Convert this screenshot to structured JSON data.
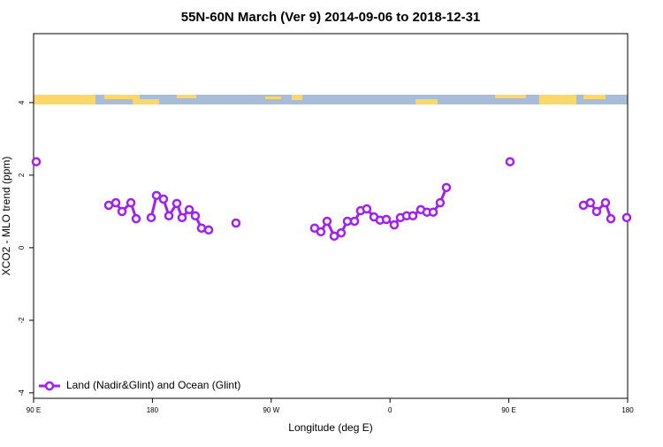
{
  "chart_data": {
    "type": "line",
    "title": "55N-60N March (Ver 9)   2014-09-06 to 2018-12-31",
    "x_label": "Longitude (deg E)",
    "y_label": "XCO2 - MLO trend (ppm)",
    "xlim": [
      90,
      540
    ],
    "ylim": [
      -4.15,
      5.9
    ],
    "xticks": [
      {
        "value": 90,
        "label": "90 E"
      },
      180,
      {
        "value": 270,
        "label": "90 W"
      },
      {
        "value": 360,
        "label": "0"
      },
      {
        "value": 450,
        "label": "90 E"
      },
      {
        "value": 540,
        "label": "180"
      }
    ],
    "yticks": [
      -4,
      -2,
      0,
      2,
      4
    ],
    "legend": "bottom-left",
    "series": [
      {
        "name": "Land (Nadir&Glint) and Ocean (Glint)",
        "color": "#a020f0",
        "x": [
          92.0,
          120,
          146.9,
          152.3,
          157.0,
          163.7,
          167.7,
          175,
          179.1,
          183.1,
          188.4,
          192.5,
          198.5,
          202.5,
          207.9,
          212.5,
          217.2,
          222.6,
          230,
          243.3,
          280,
          302.9,
          307.6,
          312.3,
          317.7,
          323.0,
          327.7,
          333.1,
          337.7,
          342.4,
          347.8,
          352.5,
          357.2,
          363.2,
          367.9,
          372.6,
          377.3,
          383.3,
          388.0,
          392.7,
          398.0,
          402.7,
          420,
          450.9,
          480,
          506.5,
          511.8,
          516.5,
          523.2,
          527.3,
          533,
          539.3
        ],
        "values": [
          2.37,
          null,
          1.17,
          1.24,
          1.0,
          1.24,
          0.8,
          null,
          0.83,
          1.44,
          1.34,
          0.88,
          1.22,
          0.83,
          1.05,
          0.88,
          0.54,
          0.49,
          null,
          0.68,
          null,
          0.54,
          0.44,
          0.73,
          0.32,
          0.41,
          0.73,
          0.73,
          1.02,
          1.07,
          0.85,
          0.76,
          0.78,
          0.63,
          0.83,
          0.88,
          0.88,
          1.05,
          0.98,
          0.98,
          1.24,
          1.66,
          null,
          2.37,
          null,
          1.17,
          1.24,
          1.0,
          1.24,
          0.8,
          null,
          0.83
        ]
      }
    ]
  }
}
